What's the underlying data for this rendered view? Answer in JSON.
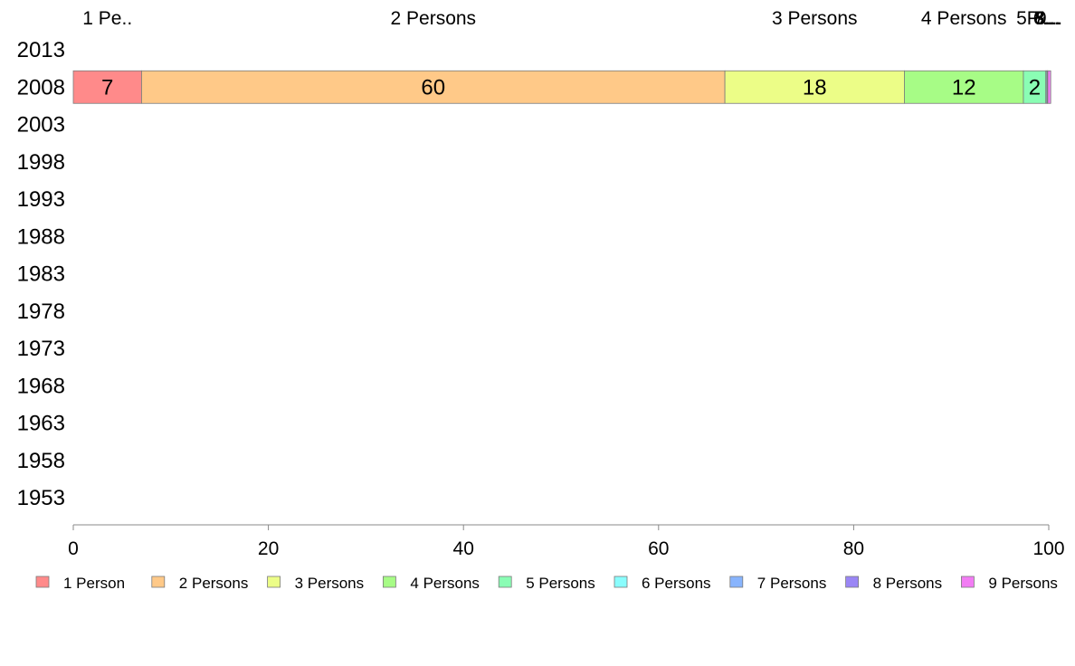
{
  "chart_data": {
    "type": "bar",
    "orientation": "horizontal",
    "stacked": true,
    "categories": [
      "2013",
      "2008",
      "2003",
      "1998",
      "1993",
      "1988",
      "1983",
      "1978",
      "1973",
      "1968",
      "1963",
      "1958",
      "1953"
    ],
    "series": [
      {
        "name": "1 Person",
        "color": "#ff8a8a",
        "values": [
          null,
          7,
          null,
          null,
          null,
          null,
          null,
          null,
          null,
          null,
          null,
          null,
          null
        ]
      },
      {
        "name": "2 Persons",
        "color": "#ffc988",
        "values": [
          null,
          59.8,
          null,
          null,
          null,
          null,
          null,
          null,
          null,
          null,
          null,
          null,
          null
        ]
      },
      {
        "name": "3 Persons",
        "color": "#ecfd87",
        "values": [
          null,
          18.4,
          null,
          null,
          null,
          null,
          null,
          null,
          null,
          null,
          null,
          null,
          null
        ]
      },
      {
        "name": "4 Persons",
        "color": "#a7fc86",
        "values": [
          null,
          12.2,
          null,
          null,
          null,
          null,
          null,
          null,
          null,
          null,
          null,
          null,
          null
        ]
      },
      {
        "name": "5 Persons",
        "color": "#8afdb4",
        "values": [
          null,
          2.3,
          null,
          null,
          null,
          null,
          null,
          null,
          null,
          null,
          null,
          null,
          null
        ]
      },
      {
        "name": "6 Persons",
        "color": "#8afdfd",
        "values": [
          null,
          0.1,
          null,
          null,
          null,
          null,
          null,
          null,
          null,
          null,
          null,
          null,
          null
        ]
      },
      {
        "name": "7 Persons",
        "color": "#88b4fd",
        "values": [
          null,
          0.05,
          null,
          null,
          null,
          null,
          null,
          null,
          null,
          null,
          null,
          null,
          null
        ]
      },
      {
        "name": "8 Persons",
        "color": "#9a86f5",
        "values": [
          null,
          0.05,
          null,
          null,
          null,
          null,
          null,
          null,
          null,
          null,
          null,
          null,
          null
        ]
      },
      {
        "name": "9 Persons",
        "color": "#f27cf4",
        "values": [
          null,
          0.3,
          null,
          null,
          null,
          null,
          null,
          null,
          null,
          null,
          null,
          null,
          null
        ]
      }
    ],
    "data_labels": [
      "7",
      "60",
      "18",
      "12",
      "2",
      "",
      "",
      "",
      ""
    ],
    "top_labels": [
      "1 Pe..",
      "2 Persons",
      "3 Persons",
      "4 Persons",
      "5P...",
      "6...",
      "7...",
      "8...",
      "9..."
    ],
    "xlim": [
      0,
      100
    ],
    "x_ticks": [
      0,
      20,
      40,
      60,
      80,
      100
    ],
    "grid": false,
    "legend_position": "bottom"
  }
}
